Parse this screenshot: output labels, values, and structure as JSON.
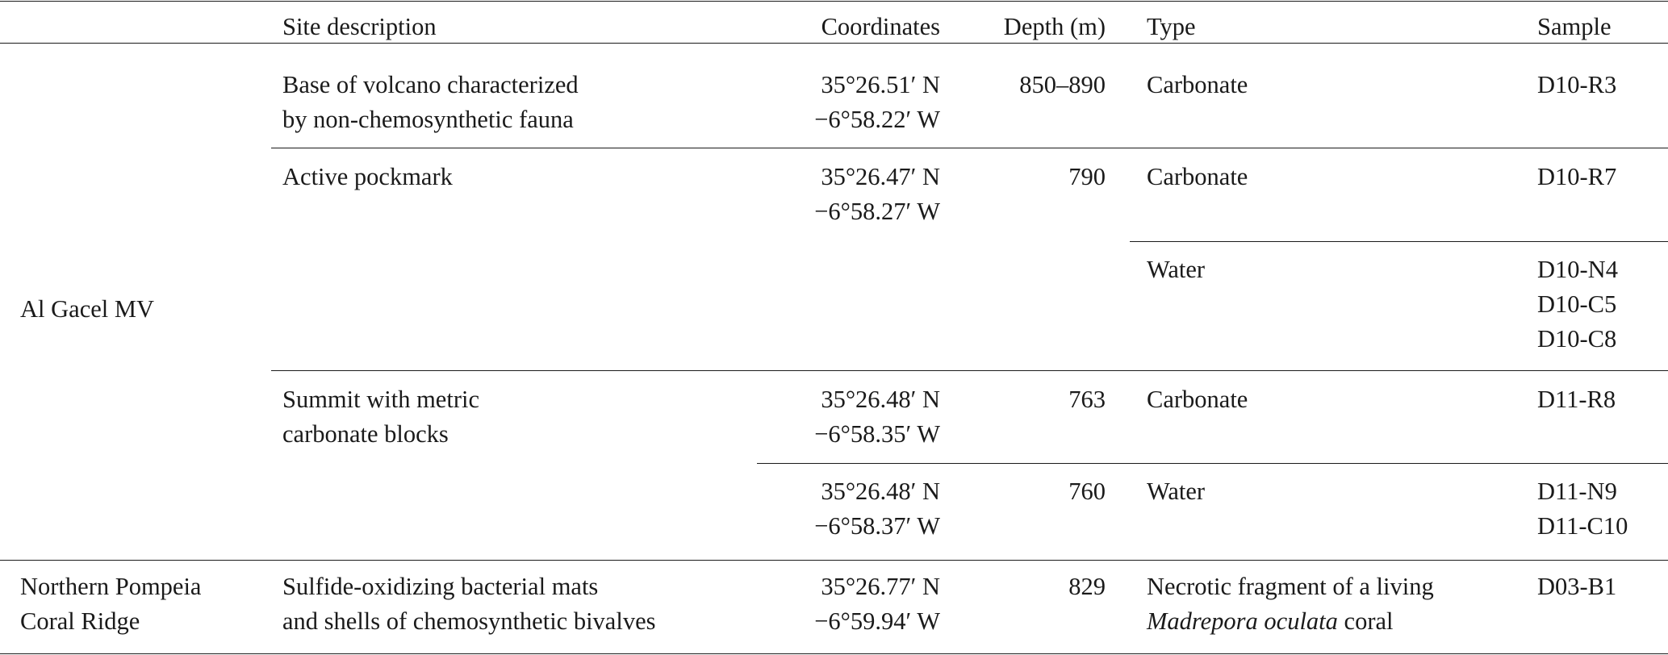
{
  "header": {
    "site_description": "Site description",
    "coordinates": "Coordinates",
    "depth": "Depth (m)",
    "type": "Type",
    "sample": "Sample"
  },
  "groups": [
    {
      "label": "Al Gacel MV"
    },
    {
      "label_lines": [
        "Northern Pompeia",
        "Coral Ridge"
      ]
    }
  ],
  "rows": [
    {
      "site_lines": [
        "Base of volcano characterized",
        "by non-chemosynthetic fauna"
      ],
      "coords": [
        "35°26.51′ N",
        "−6°58.22′ W"
      ],
      "depth": "850–890",
      "type": "Carbonate",
      "samples": [
        "D10-R3"
      ]
    },
    {
      "site_lines": [
        "Active pockmark"
      ],
      "coords": [
        "35°26.47′ N",
        "−6°58.27′ W"
      ],
      "depth": "790",
      "type": "Carbonate",
      "samples": [
        "D10-R7"
      ]
    },
    {
      "type": "Water",
      "samples": [
        "D10-N4",
        "D10-C5",
        "D10-C8"
      ]
    },
    {
      "site_lines": [
        "Summit with metric",
        "carbonate blocks"
      ],
      "coords": [
        "35°26.48′ N",
        "−6°58.35′ W"
      ],
      "depth": "763",
      "type": "Carbonate",
      "samples": [
        "D11-R8"
      ]
    },
    {
      "coords": [
        "35°26.48′ N",
        "−6°58.37′ W"
      ],
      "depth": "760",
      "type": "Water",
      "samples": [
        "D11-N9",
        "D11-C10"
      ]
    },
    {
      "site_lines": [
        "Sulfide-oxidizing bacterial mats",
        "and shells of chemosynthetic bivalves"
      ],
      "coords": [
        "35°26.77′ N",
        "−6°59.94′ W"
      ],
      "depth": "829",
      "type_line1": "Necrotic fragment of a living",
      "type_line2_italic": "Madrepora oculata",
      "type_line2_rest": " coral",
      "samples": [
        "D03-B1"
      ]
    }
  ]
}
